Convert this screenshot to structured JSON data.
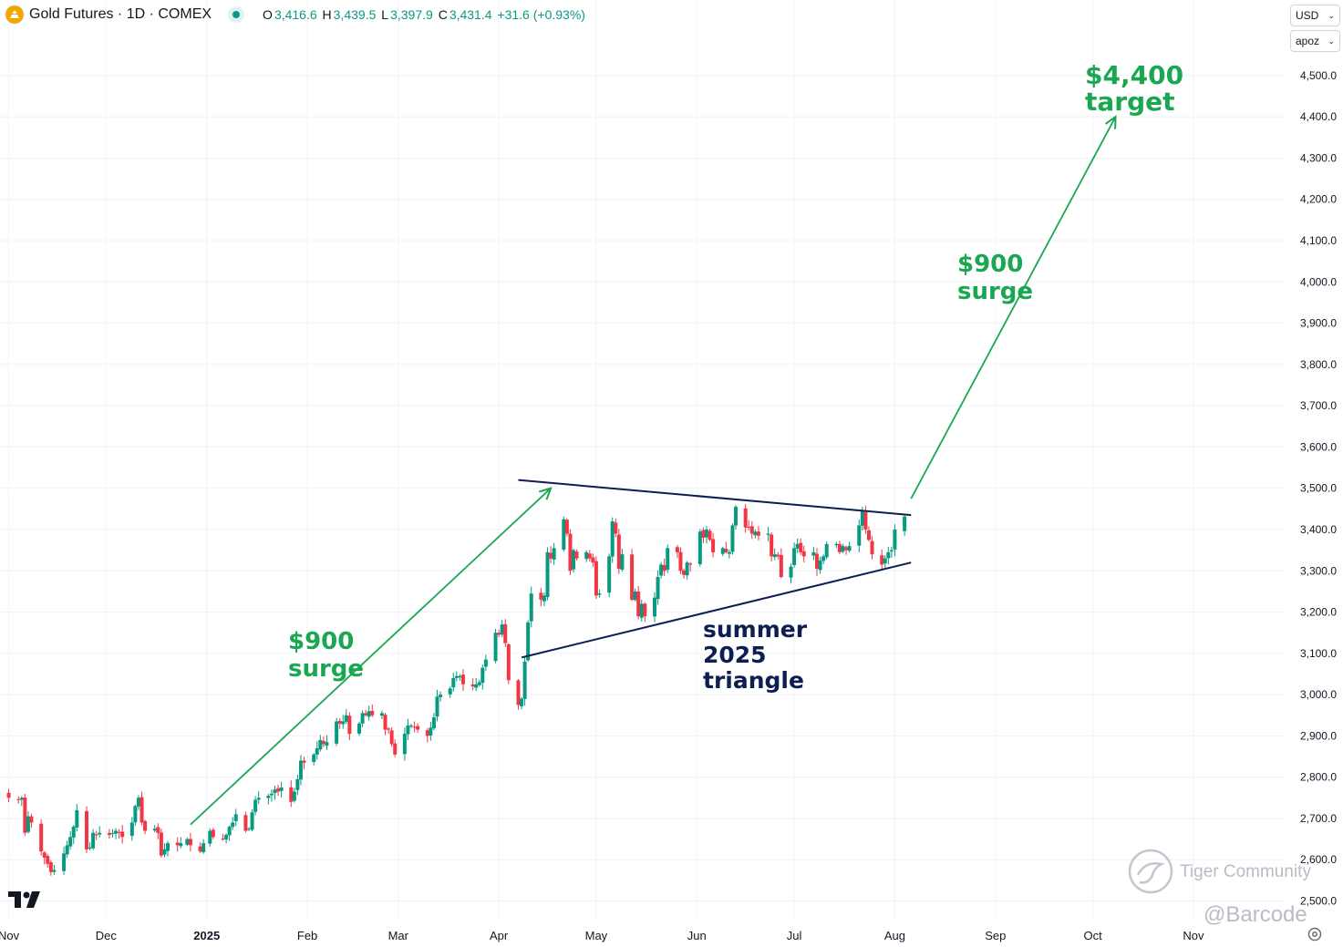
{
  "header": {
    "title": "Gold Futures · 1D · COMEX",
    "ohlc": {
      "o_label": "O",
      "o": "3,416.6",
      "h_label": "H",
      "h": "3,439.5",
      "l_label": "L",
      "l": "3,397.9",
      "c_label": "C",
      "c": "3,431.4",
      "change": "+31.6 (+0.93%)"
    },
    "currency": "USD",
    "scale_mode": "apoz"
  },
  "watermark": {
    "brand": "Tiger Community",
    "handle": "@Barcode"
  },
  "colors": {
    "up": "#089981",
    "down": "#f23645",
    "annotation_green": "#1aa752",
    "annotation_navy": "#0d1f52",
    "grid": "#f0f3fa"
  },
  "chart_data": {
    "type": "candlestick",
    "title": "Gold Futures · 1D · COMEX",
    "y_ticks": [
      "4,500.0",
      "4,400.0",
      "4,300.0",
      "4,200.0",
      "4,100.0",
      "4,000.0",
      "3,900.0",
      "3,800.0",
      "3,700.0",
      "3,600.0",
      "3,500.0",
      "3,400.0",
      "3,300.0",
      "3,200.0",
      "3,100.0",
      "3,000.0",
      "2,900.0",
      "2,800.0",
      "2,700.0",
      "2,600.0",
      "2,500.0"
    ],
    "x_ticks": [
      "Nov",
      "Dec",
      "2025",
      "Feb",
      "Mar",
      "Apr",
      "May",
      "Jun",
      "Jul",
      "Aug",
      "Sep",
      "Oct",
      "Nov"
    ],
    "ylim": [
      2480,
      4620
    ],
    "xlim": [
      "2024-10-31",
      "2025-11-30"
    ],
    "grid": true,
    "last_price": 3431.4,
    "closes": [
      [
        "2024-11-01",
        2750
      ],
      [
        "2024-11-04",
        2745
      ],
      [
        "2024-11-05",
        2750
      ],
      [
        "2024-11-06",
        2665
      ],
      [
        "2024-11-07",
        2705
      ],
      [
        "2024-11-08",
        2690
      ],
      [
        "2024-11-11",
        2620
      ],
      [
        "2024-11-12",
        2605
      ],
      [
        "2024-11-13",
        2590
      ],
      [
        "2024-11-14",
        2570
      ],
      [
        "2024-11-15",
        2575
      ],
      [
        "2024-11-18",
        2615
      ],
      [
        "2024-11-19",
        2635
      ],
      [
        "2024-11-20",
        2655
      ],
      [
        "2024-11-21",
        2680
      ],
      [
        "2024-11-22",
        2720
      ],
      [
        "2024-11-25",
        2625
      ],
      [
        "2024-11-26",
        2630
      ],
      [
        "2024-11-27",
        2665
      ],
      [
        "2024-11-28",
        2660
      ],
      [
        "2024-11-29",
        2665
      ],
      [
        "2024-12-02",
        2660
      ],
      [
        "2024-12-03",
        2665
      ],
      [
        "2024-12-04",
        2670
      ],
      [
        "2024-12-05",
        2665
      ],
      [
        "2024-12-06",
        2655
      ],
      [
        "2024-12-09",
        2690
      ],
      [
        "2024-12-10",
        2730
      ],
      [
        "2024-12-11",
        2750
      ],
      [
        "2024-12-12",
        2690
      ],
      [
        "2024-12-13",
        2670
      ],
      [
        "2024-12-16",
        2675
      ],
      [
        "2024-12-17",
        2665
      ],
      [
        "2024-12-18",
        2610
      ],
      [
        "2024-12-19",
        2625
      ],
      [
        "2024-12-20",
        2640
      ],
      [
        "2024-12-23",
        2635
      ],
      [
        "2024-12-24",
        2640
      ],
      [
        "2024-12-26",
        2650
      ],
      [
        "2024-12-27",
        2635
      ],
      [
        "2024-12-30",
        2620
      ],
      [
        "2024-12-31",
        2640
      ],
      [
        "2025-01-02",
        2670
      ],
      [
        "2025-01-03",
        2655
      ],
      [
        "2025-01-06",
        2650
      ],
      [
        "2025-01-07",
        2660
      ],
      [
        "2025-01-08",
        2680
      ],
      [
        "2025-01-09",
        2690
      ],
      [
        "2025-01-10",
        2710
      ],
      [
        "2025-01-13",
        2670
      ],
      [
        "2025-01-14",
        2675
      ],
      [
        "2025-01-15",
        2715
      ],
      [
        "2025-01-16",
        2745
      ],
      [
        "2025-01-17",
        2750
      ],
      [
        "2025-01-20",
        2755
      ],
      [
        "2025-01-21",
        2760
      ],
      [
        "2025-01-22",
        2770
      ],
      [
        "2025-01-23",
        2765
      ],
      [
        "2025-01-24",
        2775
      ],
      [
        "2025-01-27",
        2740
      ],
      [
        "2025-01-28",
        2765
      ],
      [
        "2025-01-29",
        2795
      ],
      [
        "2025-01-30",
        2840
      ],
      [
        "2025-01-31",
        2835
      ],
      [
        "2025-02-03",
        2855
      ],
      [
        "2025-02-04",
        2870
      ],
      [
        "2025-02-05",
        2890
      ],
      [
        "2025-02-06",
        2880
      ],
      [
        "2025-02-07",
        2885
      ],
      [
        "2025-02-10",
        2935
      ],
      [
        "2025-02-11",
        2930
      ],
      [
        "2025-02-12",
        2935
      ],
      [
        "2025-02-13",
        2950
      ],
      [
        "2025-02-14",
        2905
      ],
      [
        "2025-02-17",
        2930
      ],
      [
        "2025-02-18",
        2955
      ],
      [
        "2025-02-19",
        2950
      ],
      [
        "2025-02-20",
        2960
      ],
      [
        "2025-02-21",
        2950
      ],
      [
        "2025-02-24",
        2955
      ],
      [
        "2025-02-25",
        2915
      ],
      [
        "2025-02-26",
        2915
      ],
      [
        "2025-02-27",
        2880
      ],
      [
        "2025-02-28",
        2855
      ],
      [
        "2025-03-03",
        2905
      ],
      [
        "2025-03-04",
        2925
      ],
      [
        "2025-03-05",
        2925
      ],
      [
        "2025-03-06",
        2920
      ],
      [
        "2025-03-07",
        2915
      ],
      [
        "2025-03-10",
        2900
      ],
      [
        "2025-03-11",
        2920
      ],
      [
        "2025-03-12",
        2945
      ],
      [
        "2025-03-13",
        2995
      ],
      [
        "2025-03-14",
        3000
      ],
      [
        "2025-03-17",
        3015
      ],
      [
        "2025-03-18",
        3040
      ],
      [
        "2025-03-19",
        3045
      ],
      [
        "2025-03-20",
        3045
      ],
      [
        "2025-03-21",
        3025
      ],
      [
        "2025-03-24",
        3020
      ],
      [
        "2025-03-25",
        3025
      ],
      [
        "2025-03-26",
        3030
      ],
      [
        "2025-03-27",
        3065
      ],
      [
        "2025-03-28",
        3085
      ],
      [
        "2025-03-31",
        3150
      ],
      [
        "2025-04-01",
        3145
      ],
      [
        "2025-04-02",
        3170
      ],
      [
        "2025-04-03",
        3125
      ],
      [
        "2025-04-04",
        3035
      ],
      [
        "2025-04-07",
        2975
      ],
      [
        "2025-04-08",
        2990
      ],
      [
        "2025-04-09",
        3080
      ],
      [
        "2025-04-10",
        3175
      ],
      [
        "2025-04-11",
        3245
      ],
      [
        "2025-04-14",
        3230
      ],
      [
        "2025-04-15",
        3240
      ],
      [
        "2025-04-16",
        3345
      ],
      [
        "2025-04-17",
        3330
      ],
      [
        "2025-04-18",
        3355
      ],
      [
        "2025-04-21",
        3425
      ],
      [
        "2025-04-22",
        3390
      ],
      [
        "2025-04-23",
        3300
      ],
      [
        "2025-04-24",
        3350
      ],
      [
        "2025-04-25",
        3330
      ],
      [
        "2025-04-28",
        3345
      ],
      [
        "2025-04-29",
        3330
      ],
      [
        "2025-04-30",
        3320
      ],
      [
        "2025-05-01",
        3240
      ],
      [
        "2025-05-02",
        3245
      ],
      [
        "2025-05-05",
        3335
      ],
      [
        "2025-05-06",
        3420
      ],
      [
        "2025-05-07",
        3390
      ],
      [
        "2025-05-08",
        3305
      ],
      [
        "2025-05-09",
        3340
      ],
      [
        "2025-05-12",
        3230
      ],
      [
        "2025-05-13",
        3250
      ],
      [
        "2025-05-14",
        3190
      ],
      [
        "2025-05-15",
        3220
      ],
      [
        "2025-05-16",
        3190
      ],
      [
        "2025-05-19",
        3235
      ],
      [
        "2025-05-20",
        3285
      ],
      [
        "2025-05-21",
        3315
      ],
      [
        "2025-05-22",
        3300
      ],
      [
        "2025-05-23",
        3355
      ],
      [
        "2025-05-26",
        3345
      ],
      [
        "2025-05-27",
        3300
      ],
      [
        "2025-05-28",
        3290
      ],
      [
        "2025-05-29",
        3320
      ],
      [
        "2025-05-30",
        3315
      ],
      [
        "2025-06-02",
        3395
      ],
      [
        "2025-06-03",
        3380
      ],
      [
        "2025-06-04",
        3400
      ],
      [
        "2025-06-05",
        3375
      ],
      [
        "2025-06-06",
        3345
      ],
      [
        "2025-06-09",
        3355
      ],
      [
        "2025-06-10",
        3345
      ],
      [
        "2025-06-11",
        3345
      ],
      [
        "2025-06-12",
        3410
      ],
      [
        "2025-06-13",
        3455
      ],
      [
        "2025-06-16",
        3405
      ],
      [
        "2025-06-17",
        3405
      ],
      [
        "2025-06-18",
        3390
      ],
      [
        "2025-06-19",
        3395
      ],
      [
        "2025-06-20",
        3385
      ],
      [
        "2025-06-23",
        3390
      ],
      [
        "2025-06-24",
        3335
      ],
      [
        "2025-06-25",
        3340
      ],
      [
        "2025-06-26",
        3335
      ],
      [
        "2025-06-27",
        3285
      ],
      [
        "2025-06-30",
        3310
      ],
      [
        "2025-07-01",
        3355
      ],
      [
        "2025-07-02",
        3365
      ],
      [
        "2025-07-03",
        3345
      ],
      [
        "2025-07-04",
        3335
      ],
      [
        "2025-07-07",
        3345
      ],
      [
        "2025-07-08",
        3305
      ],
      [
        "2025-07-09",
        3325
      ],
      [
        "2025-07-10",
        3335
      ],
      [
        "2025-07-11",
        3365
      ],
      [
        "2025-07-14",
        3365
      ],
      [
        "2025-07-15",
        3345
      ],
      [
        "2025-07-16",
        3360
      ],
      [
        "2025-07-17",
        3350
      ],
      [
        "2025-07-18",
        3360
      ],
      [
        "2025-07-21",
        3410
      ],
      [
        "2025-07-22",
        3445
      ],
      [
        "2025-07-23",
        3400
      ],
      [
        "2025-07-24",
        3375
      ],
      [
        "2025-07-25",
        3340
      ],
      [
        "2025-07-28",
        3315
      ],
      [
        "2025-07-29",
        3330
      ],
      [
        "2025-07-30",
        3345
      ],
      [
        "2025-07-31",
        3350
      ],
      [
        "2025-08-01",
        3400
      ],
      [
        "2025-08-04",
        3431.4
      ]
    ],
    "annotations": [
      {
        "kind": "text",
        "text": [
          "$900",
          "surge"
        ],
        "color": "#1aa752"
      },
      {
        "kind": "arrow",
        "from": [
          "2024-12-27",
          2685
        ],
        "to": [
          "2025-04-17",
          3500
        ],
        "color": "#1aa752"
      },
      {
        "kind": "line",
        "from": [
          "2025-04-07",
          3520
        ],
        "to": [
          "2025-08-06",
          3435
        ],
        "color": "#0d1f52"
      },
      {
        "kind": "line",
        "from": [
          "2025-04-08",
          3090
        ],
        "to": [
          "2025-08-06",
          3320
        ],
        "color": "#0d1f52"
      },
      {
        "kind": "text",
        "text": [
          "summer",
          "2025",
          "triangle"
        ],
        "color": "#0d1f52"
      },
      {
        "kind": "arrow",
        "from": [
          "2025-08-06",
          3475
        ],
        "to": [
          "2025-10-08",
          4400
        ],
        "color": "#1aa752"
      },
      {
        "kind": "text",
        "text": [
          "$900",
          "surge"
        ],
        "color": "#1aa752"
      },
      {
        "kind": "text",
        "text": [
          "$4,400",
          "target"
        ],
        "color": "#1aa752"
      }
    ]
  }
}
